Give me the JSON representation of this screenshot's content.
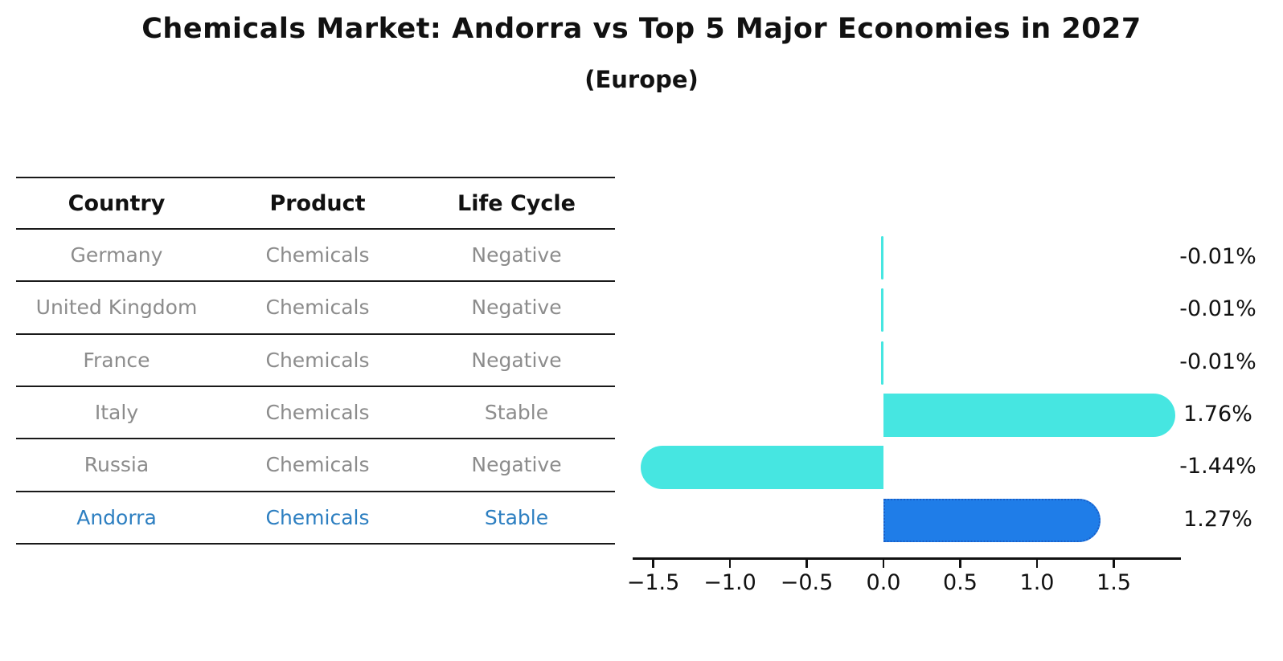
{
  "chart_data": {
    "type": "bar",
    "orientation": "horizontal",
    "title": "Chemicals Market: Andorra vs Top 5 Major Economies in 2027",
    "subtitle": "(Europe)",
    "categories": [
      "Germany",
      "United Kingdom",
      "France",
      "Italy",
      "Russia",
      "Andorra"
    ],
    "values": [
      -0.01,
      -0.01,
      -0.01,
      1.76,
      -1.44,
      1.27
    ],
    "value_labels": [
      "-0.01%",
      "-0.01%",
      "-0.01%",
      "1.76%",
      "-1.44%",
      "1.27%"
    ],
    "xlabel": "",
    "ylabel": "",
    "xlim": [
      -1.63,
      1.93
    ],
    "xtick_values": [
      -1.5,
      -1.0,
      -0.5,
      0.0,
      0.5,
      1.0,
      1.5
    ],
    "xtick_labels": [
      "−1.5",
      "−1.0",
      "−0.5",
      "0.0",
      "0.5",
      "1.0",
      "1.5"
    ],
    "grid": false,
    "legend": false,
    "highlight_index": 5
  },
  "table": {
    "headers": [
      "Country",
      "Product",
      "Life Cycle"
    ],
    "rows": [
      {
        "country": "Germany",
        "product": "Chemicals",
        "life_cycle": "Negative",
        "highlighted": false
      },
      {
        "country": "United Kingdom",
        "product": "Chemicals",
        "life_cycle": "Negative",
        "highlighted": false
      },
      {
        "country": "France",
        "product": "Chemicals",
        "life_cycle": "Negative",
        "highlighted": false
      },
      {
        "country": "Italy",
        "product": "Chemicals",
        "life_cycle": "Stable",
        "highlighted": false
      },
      {
        "country": "Russia",
        "product": "Chemicals",
        "life_cycle": "Negative",
        "highlighted": false
      },
      {
        "country": "Andorra",
        "product": "Chemicals",
        "life_cycle": "Stable",
        "highlighted": true
      }
    ]
  },
  "colors": {
    "bar_cyan": "#46e6e1",
    "bar_blue": "#1f7de8",
    "bar_blue_edge": "#1a5fc8",
    "highlight_text": "#2d7fc1",
    "row_text": "#8c8c8c",
    "header_text": "#111111",
    "rule": "#1a1a1a",
    "axis_text": "#111111"
  }
}
